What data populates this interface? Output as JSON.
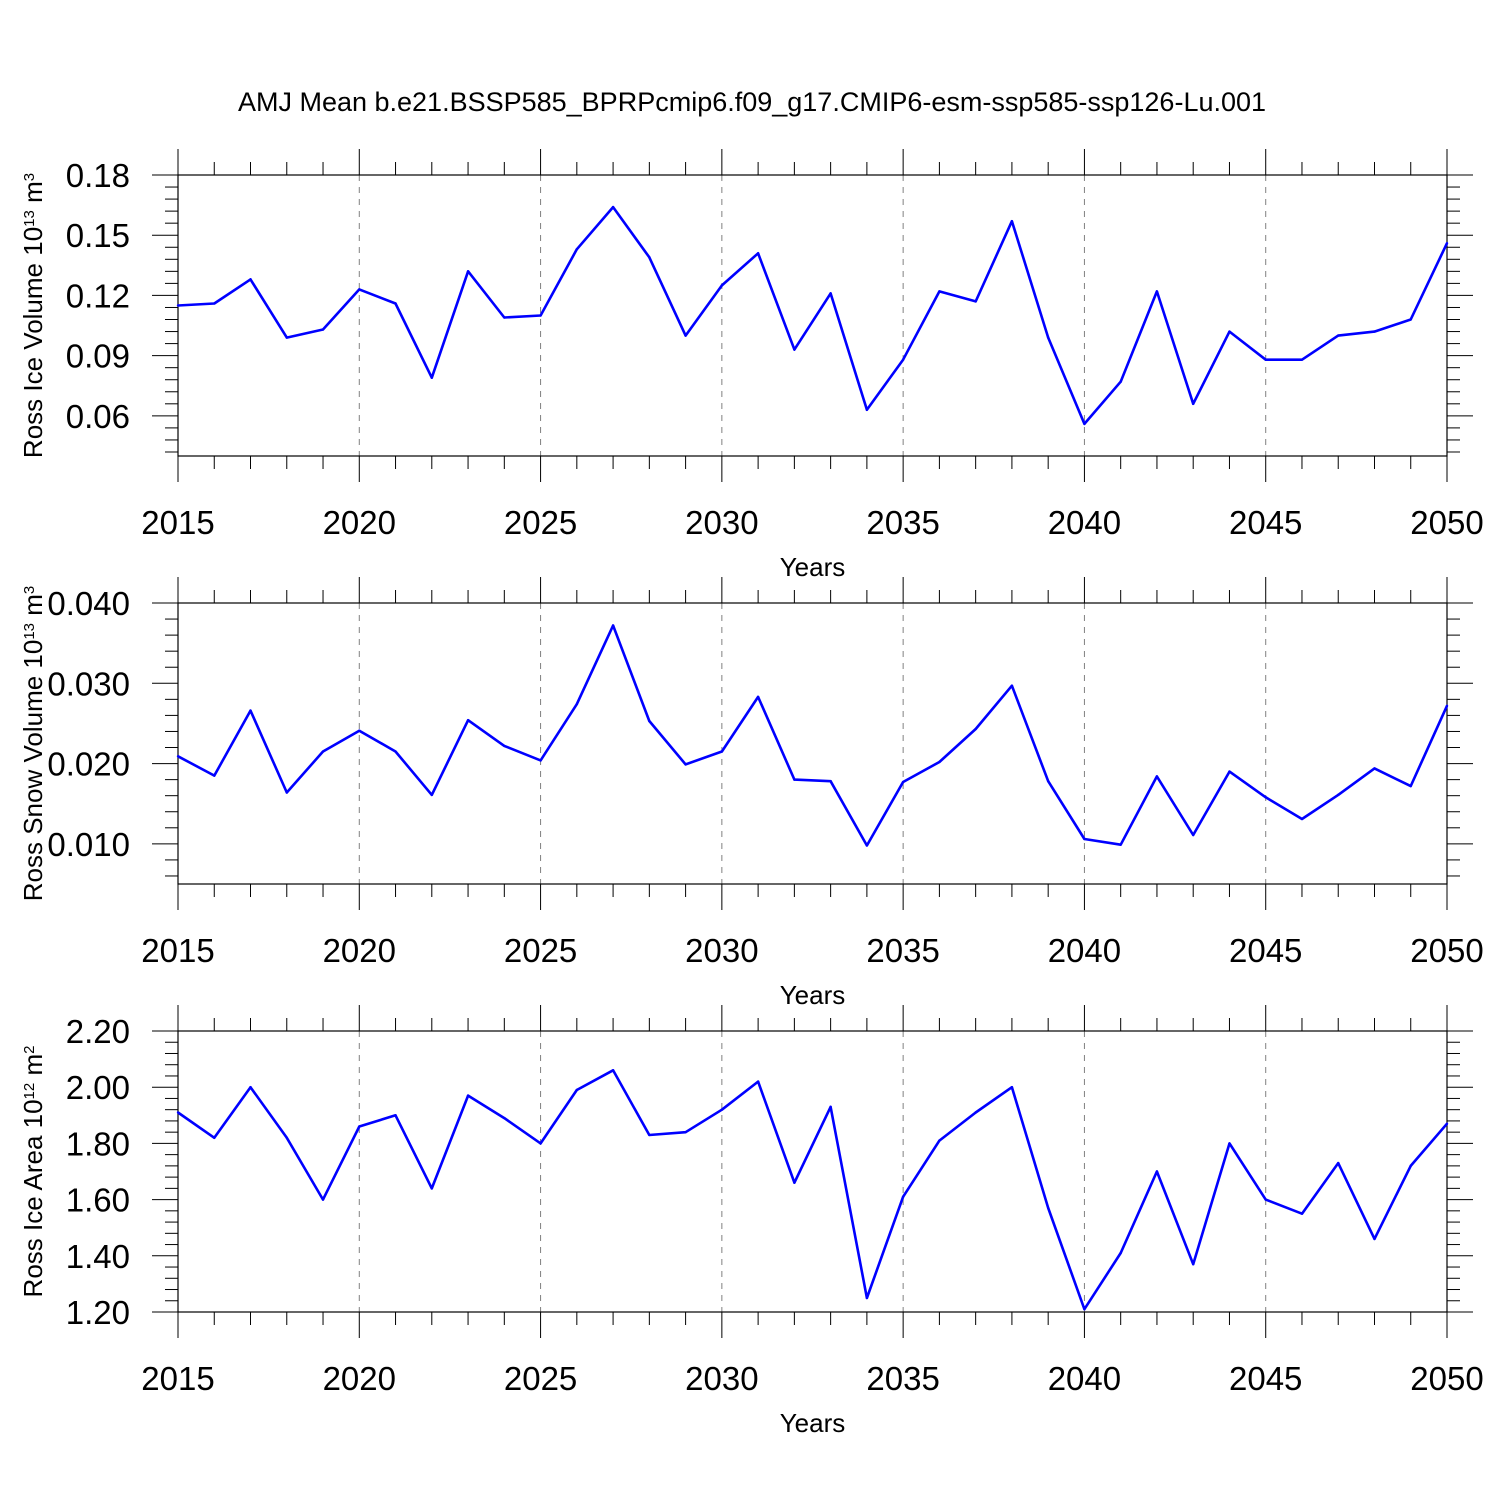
{
  "title": "AMJ Mean b.e21.BSSP585_BPRPcmip6.f09_g17.CMIP6-esm-ssp585-ssp126-Lu.001",
  "colors": {
    "line": "#0000ff",
    "axis": "#000000",
    "grid": "#808080"
  },
  "chart_data": [
    {
      "type": "line",
      "ylabel": {
        "text": "Ross Ice Volume 10",
        "exponent": "13",
        "unit": "m",
        "unit_exponent": "3"
      },
      "xlabel": "Years",
      "xlim": [
        2015,
        2050
      ],
      "ylim": [
        0.04,
        0.18
      ],
      "yticks": [
        "0.06",
        "0.09",
        "0.12",
        "0.15",
        "0.18"
      ],
      "xticks": [
        "2015",
        "2020",
        "2025",
        "2030",
        "2035",
        "2040",
        "2045",
        "2050"
      ],
      "grid": "vertical dashed at major x ticks",
      "x": [
        2015,
        2016,
        2017,
        2018,
        2019,
        2020,
        2021,
        2022,
        2023,
        2024,
        2025,
        2026,
        2027,
        2028,
        2029,
        2030,
        2031,
        2032,
        2033,
        2034,
        2035,
        2036,
        2037,
        2038,
        2039,
        2040,
        2041,
        2042,
        2043,
        2044,
        2045,
        2046,
        2047,
        2048,
        2049,
        2050
      ],
      "values": [
        0.115,
        0.116,
        0.128,
        0.099,
        0.103,
        0.123,
        0.116,
        0.079,
        0.132,
        0.109,
        0.11,
        0.143,
        0.164,
        0.139,
        0.1,
        0.125,
        0.141,
        0.093,
        0.121,
        0.063,
        0.088,
        0.122,
        0.117,
        0.157,
        0.099,
        0.056,
        0.077,
        0.122,
        0.066,
        0.102,
        0.088,
        0.088,
        0.1,
        0.102,
        0.108,
        0.146
      ]
    },
    {
      "type": "line",
      "ylabel": {
        "text": "Ross Snow Volume 10",
        "exponent": "13",
        "unit": "m",
        "unit_exponent": "3"
      },
      "xlabel": "Years",
      "xlim": [
        2015,
        2050
      ],
      "ylim": [
        0.005,
        0.04
      ],
      "yticks": [
        "0.010",
        "0.020",
        "0.030",
        "0.040"
      ],
      "xticks": [
        "2015",
        "2020",
        "2025",
        "2030",
        "2035",
        "2040",
        "2045",
        "2050"
      ],
      "grid": "vertical dashed at major x ticks",
      "x": [
        2015,
        2016,
        2017,
        2018,
        2019,
        2020,
        2021,
        2022,
        2023,
        2024,
        2025,
        2026,
        2027,
        2028,
        2029,
        2030,
        2031,
        2032,
        2033,
        2034,
        2035,
        2036,
        2037,
        2038,
        2039,
        2040,
        2041,
        2042,
        2043,
        2044,
        2045,
        2046,
        2047,
        2048,
        2049,
        2050
      ],
      "values": [
        0.0209,
        0.0185,
        0.0266,
        0.0164,
        0.0215,
        0.0241,
        0.0215,
        0.0161,
        0.0254,
        0.0222,
        0.0204,
        0.0274,
        0.0372,
        0.0253,
        0.0199,
        0.0215,
        0.0283,
        0.018,
        0.0178,
        0.0098,
        0.0177,
        0.0202,
        0.0243,
        0.0297,
        0.0178,
        0.0106,
        0.0099,
        0.0184,
        0.0111,
        0.019,
        0.0158,
        0.0131,
        0.0161,
        0.0194,
        0.0172,
        0.0272
      ]
    },
    {
      "type": "line",
      "ylabel": {
        "text": "Ross Ice Area 10",
        "exponent": "12",
        "unit": "m",
        "unit_exponent": "2"
      },
      "xlabel": "Years",
      "xlim": [
        2015,
        2050
      ],
      "ylim": [
        1.2,
        2.2
      ],
      "yticks": [
        "1.20",
        "1.40",
        "1.60",
        "1.80",
        "2.00",
        "2.20"
      ],
      "xticks": [
        "2015",
        "2020",
        "2025",
        "2030",
        "2035",
        "2040",
        "2045",
        "2050"
      ],
      "grid": "vertical dashed at major x ticks",
      "x": [
        2015,
        2016,
        2017,
        2018,
        2019,
        2020,
        2021,
        2022,
        2023,
        2024,
        2025,
        2026,
        2027,
        2028,
        2029,
        2030,
        2031,
        2032,
        2033,
        2034,
        2035,
        2036,
        2037,
        2038,
        2039,
        2040,
        2041,
        2042,
        2043,
        2044,
        2045,
        2046,
        2047,
        2048,
        2049,
        2050
      ],
      "values": [
        1.91,
        1.82,
        2.0,
        1.82,
        1.6,
        1.86,
        1.9,
        1.64,
        1.97,
        1.89,
        1.8,
        1.99,
        2.06,
        1.83,
        1.84,
        1.92,
        2.02,
        1.66,
        1.93,
        1.25,
        1.61,
        1.81,
        1.91,
        2.0,
        1.57,
        1.21,
        1.41,
        1.7,
        1.37,
        1.8,
        1.6,
        1.55,
        1.73,
        1.46,
        1.72,
        1.87
      ]
    }
  ]
}
